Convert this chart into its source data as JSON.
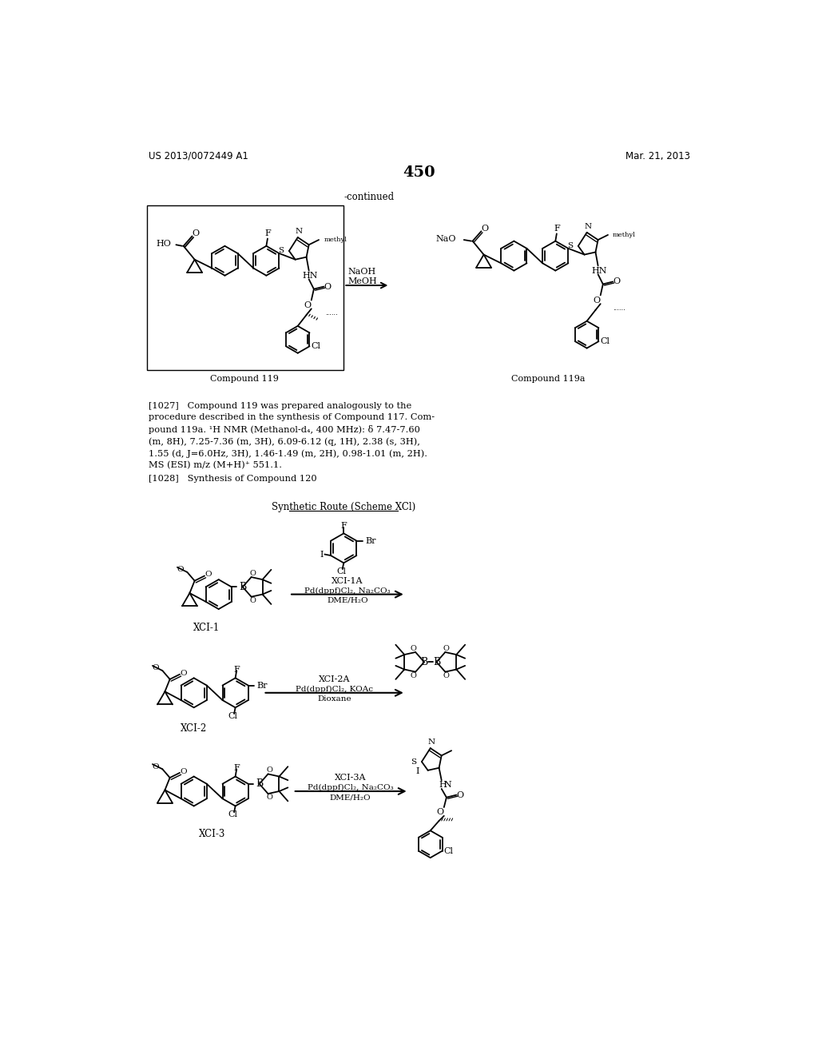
{
  "background_color": "#ffffff",
  "header_left": "US 2013/0072449 A1",
  "header_right": "Mar. 21, 2013",
  "page_number": "450",
  "continued_text": "-continued",
  "compound119_label": "Compound 119",
  "compound119a_label": "Compound 119a",
  "xcl1_label": "XCI-1",
  "xcl1a_label": "XCI-1A",
  "xcl2_label": "XCI-2",
  "xcl2a_label": "XCI-2A",
  "xcl3_label": "XCI-3",
  "xcl3a_label": "XCI-3A"
}
